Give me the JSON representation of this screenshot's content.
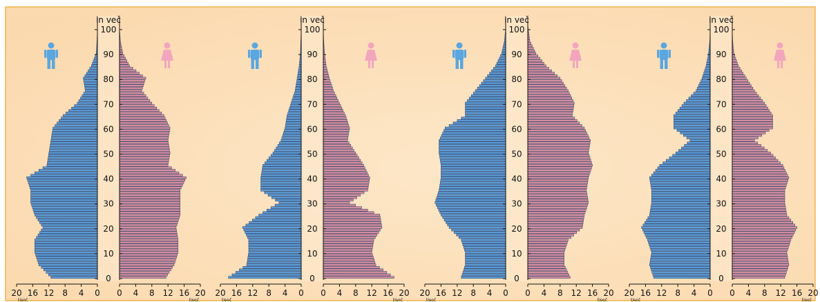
{
  "colors": {
    "male": "#5b9bd5",
    "female": "#d58ea0",
    "bar_stroke": "#2c3e66",
    "male_icon": "#5aa7e0",
    "female_icon": "#f2a6bd",
    "panel_bg": "#fbd9ae",
    "frame": "#f0b24b",
    "text": "#111111"
  },
  "icons": {
    "male": "male-person-icon",
    "female": "female-person-icon"
  },
  "chart_data": [
    {
      "type": "bar",
      "orientation": "horizontal-pyramid",
      "age_label": "in več",
      "age_ticks": [
        "0",
        "10",
        "20",
        "30",
        "40",
        "50",
        "60",
        "70",
        "80",
        "90",
        "100"
      ],
      "x_ticks_left": [
        "20",
        "16",
        "12",
        "8",
        "4",
        "0"
      ],
      "x_ticks_right": [
        "0",
        "4",
        "8",
        "12",
        "16",
        "20"
      ],
      "x_unit": "tisoč",
      "xlim": [
        0,
        20
      ],
      "ages": [
        0,
        5,
        10,
        15,
        20,
        25,
        30,
        35,
        40,
        45,
        50,
        55,
        60,
        65,
        70,
        75,
        80,
        85,
        90,
        95,
        100
      ],
      "series": [
        {
          "values": [
            11.5,
            14.5,
            15.5,
            15.5,
            13.5,
            15.5,
            16.5,
            16.5,
            17.5,
            12.5,
            12.0,
            11.5,
            11.0,
            8.5,
            5.0,
            3.0,
            3.5,
            1.5,
            0.3,
            0.1,
            0
          ]
        },
        {
          "values": [
            11.5,
            13.5,
            14.5,
            14.5,
            14.0,
            15.0,
            15.0,
            15.0,
            16.5,
            12.0,
            12.5,
            12.0,
            12.5,
            11.0,
            8.0,
            5.5,
            6.5,
            2.5,
            0.8,
            0.2,
            0
          ]
        }
      ]
    },
    {
      "type": "bar",
      "orientation": "horizontal-pyramid",
      "age_label": "in več",
      "age_ticks": [
        "0",
        "10",
        "20",
        "30",
        "40",
        "50",
        "60",
        "70",
        "80",
        "90",
        "100"
      ],
      "x_ticks_left": [
        "20",
        "16",
        "12",
        "8",
        "4",
        "0"
      ],
      "x_ticks_right": [
        "0",
        "4",
        "8",
        "12",
        "16",
        "20"
      ],
      "x_unit": "tisoč",
      "xlim": [
        0,
        20
      ],
      "ages": [
        0,
        5,
        10,
        15,
        20,
        25,
        30,
        35,
        40,
        45,
        50,
        55,
        60,
        65,
        70,
        75,
        80,
        85,
        90,
        95,
        100
      ],
      "series": [
        {
          "values": [
            18.0,
            13.5,
            13.0,
            13.0,
            14.5,
            10.5,
            5.5,
            10.0,
            10.0,
            9.5,
            7.0,
            5.0,
            4.0,
            3.5,
            2.5,
            1.5,
            1.0,
            0.5,
            0.2,
            0.1,
            0
          ]
        },
        {
          "values": [
            17.5,
            13.0,
            12.0,
            12.5,
            14.5,
            14.0,
            6.5,
            11.0,
            11.5,
            10.0,
            8.0,
            6.0,
            6.5,
            5.5,
            4.0,
            2.5,
            1.5,
            0.7,
            0.3,
            0.1,
            0
          ]
        }
      ]
    },
    {
      "type": "bar",
      "orientation": "horizontal-pyramid",
      "age_label": "in več",
      "age_ticks": [
        "0",
        "10",
        "20",
        "30",
        "40",
        "50",
        "60",
        "70",
        "80",
        "90",
        "100"
      ],
      "x_ticks_left": [
        "20",
        "16",
        "12",
        "8",
        "4",
        "0"
      ],
      "x_ticks_right": [
        "0",
        "4",
        "8",
        "12",
        "16",
        "20"
      ],
      "x_unit": "tisoč",
      "xlim": [
        0,
        20
      ],
      "ages": [
        0,
        5,
        10,
        15,
        20,
        25,
        30,
        35,
        40,
        45,
        50,
        55,
        60,
        65,
        70,
        75,
        80,
        85,
        90,
        95,
        100
      ],
      "series": [
        {
          "values": [
            11.0,
            10.0,
            10.0,
            11.0,
            14.0,
            16.0,
            17.5,
            16.5,
            16.0,
            16.0,
            16.5,
            16.5,
            15.0,
            10.0,
            10.0,
            7.5,
            5.0,
            2.5,
            1.0,
            0.3,
            0
          ]
        },
        {
          "values": [
            10.5,
            9.0,
            9.0,
            10.0,
            13.5,
            14.0,
            15.0,
            14.5,
            15.0,
            16.0,
            15.0,
            15.5,
            14.0,
            11.0,
            11.5,
            10.0,
            8.0,
            4.5,
            2.0,
            0.5,
            0.1
          ]
        }
      ]
    },
    {
      "type": "bar",
      "orientation": "horizontal-pyramid",
      "age_label": "in več",
      "age_ticks": [
        "0",
        "10",
        "20",
        "30",
        "40",
        "50",
        "60",
        "70",
        "80",
        "90",
        "100"
      ],
      "x_ticks_left": [
        "20",
        "16",
        "12",
        "8",
        "4",
        "0"
      ],
      "x_ticks_right": [
        "0",
        "4",
        "8",
        "12",
        "16",
        "20"
      ],
      "x_unit": "tisoč",
      "xlim": [
        0,
        20
      ],
      "ages": [
        0,
        5,
        10,
        15,
        20,
        25,
        30,
        35,
        40,
        45,
        50,
        55,
        60,
        65,
        70,
        75,
        80,
        85,
        90,
        95,
        100
      ],
      "series": [
        {
          "values": [
            14.0,
            15.0,
            14.5,
            15.5,
            17.0,
            15.0,
            14.5,
            14.5,
            15.0,
            12.5,
            8.5,
            5.0,
            9.0,
            9.0,
            6.5,
            3.5,
            2.0,
            1.0,
            0.4,
            0.1,
            0
          ]
        },
        {
          "values": [
            13.0,
            14.0,
            13.5,
            14.5,
            16.0,
            13.5,
            13.0,
            13.0,
            14.0,
            12.5,
            9.5,
            5.5,
            10.0,
            10.0,
            8.0,
            5.5,
            3.5,
            1.5,
            0.4,
            0.1,
            0
          ]
        }
      ]
    }
  ]
}
